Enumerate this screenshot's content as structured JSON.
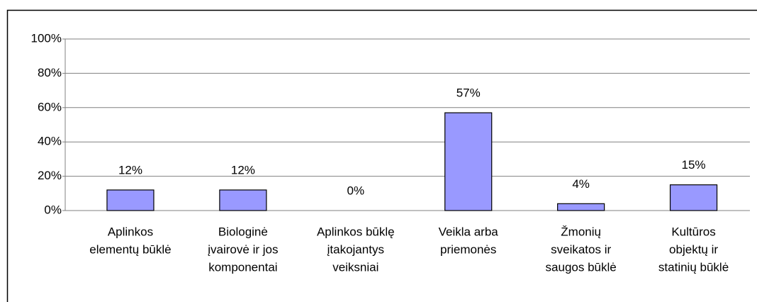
{
  "chart_data": {
    "type": "bar",
    "categories": [
      [
        "Aplinkos",
        "elementų būklė"
      ],
      [
        "Biologinė",
        "įvairovė ir jos",
        "komponentai"
      ],
      [
        "Aplinkos būklę",
        "įtakojantys",
        "veiksniai"
      ],
      [
        "Veikla arba",
        "priemonės"
      ],
      [
        "Žmonių",
        "sveikatos ir",
        "saugos būklė"
      ],
      [
        "Kultūros",
        "objektų ir",
        "statinių būklė"
      ]
    ],
    "values": [
      12,
      12,
      0,
      57,
      4,
      15
    ],
    "value_labels": [
      "12%",
      "12%",
      "0%",
      "57%",
      "4%",
      "15%"
    ],
    "color": "#9999ff",
    "ylim": [
      0,
      100
    ],
    "yticks": [
      {
        "value": 0,
        "label": "0%"
      },
      {
        "value": 20,
        "label": "20%"
      },
      {
        "value": 40,
        "label": "40%"
      },
      {
        "value": 60,
        "label": "60%"
      },
      {
        "value": 80,
        "label": "80%"
      },
      {
        "value": 100,
        "label": "100%"
      }
    ],
    "grid": true
  }
}
